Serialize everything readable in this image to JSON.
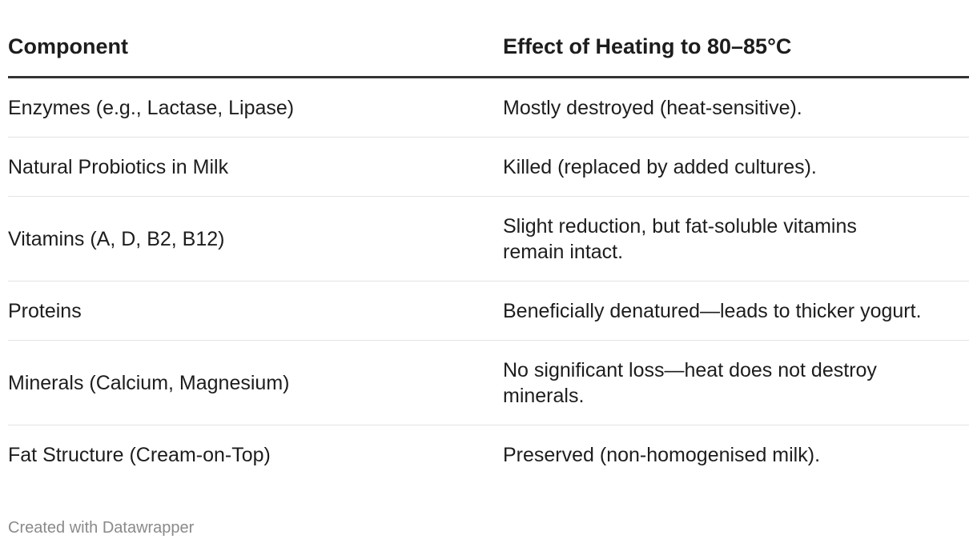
{
  "chart_data": {
    "type": "table",
    "columns": [
      "Component",
      "Effect of Heating to 80–85°C"
    ],
    "rows": [
      {
        "component": "Enzymes (e.g., Lactase, Lipase)",
        "effect": "Mostly destroyed (heat-sensitive)."
      },
      {
        "component": "Natural Probiotics in Milk",
        "effect": "Killed (replaced by added cultures)."
      },
      {
        "component": "Vitamins (A, D, B2, B12)",
        "effect": "Slight reduction, but fat-soluble vitamins remain intact."
      },
      {
        "component": "Proteins",
        "effect": "Beneficially denatured—leads to thicker yogurt."
      },
      {
        "component": "Minerals (Calcium, Magnesium)",
        "effect": "No significant loss—heat does not destroy minerals."
      },
      {
        "component": "Fat Structure (Cream-on-Top)",
        "effect": "Preserved (non-homogenised milk)."
      }
    ]
  },
  "footer": {
    "credit": "Created with Datawrapper"
  }
}
